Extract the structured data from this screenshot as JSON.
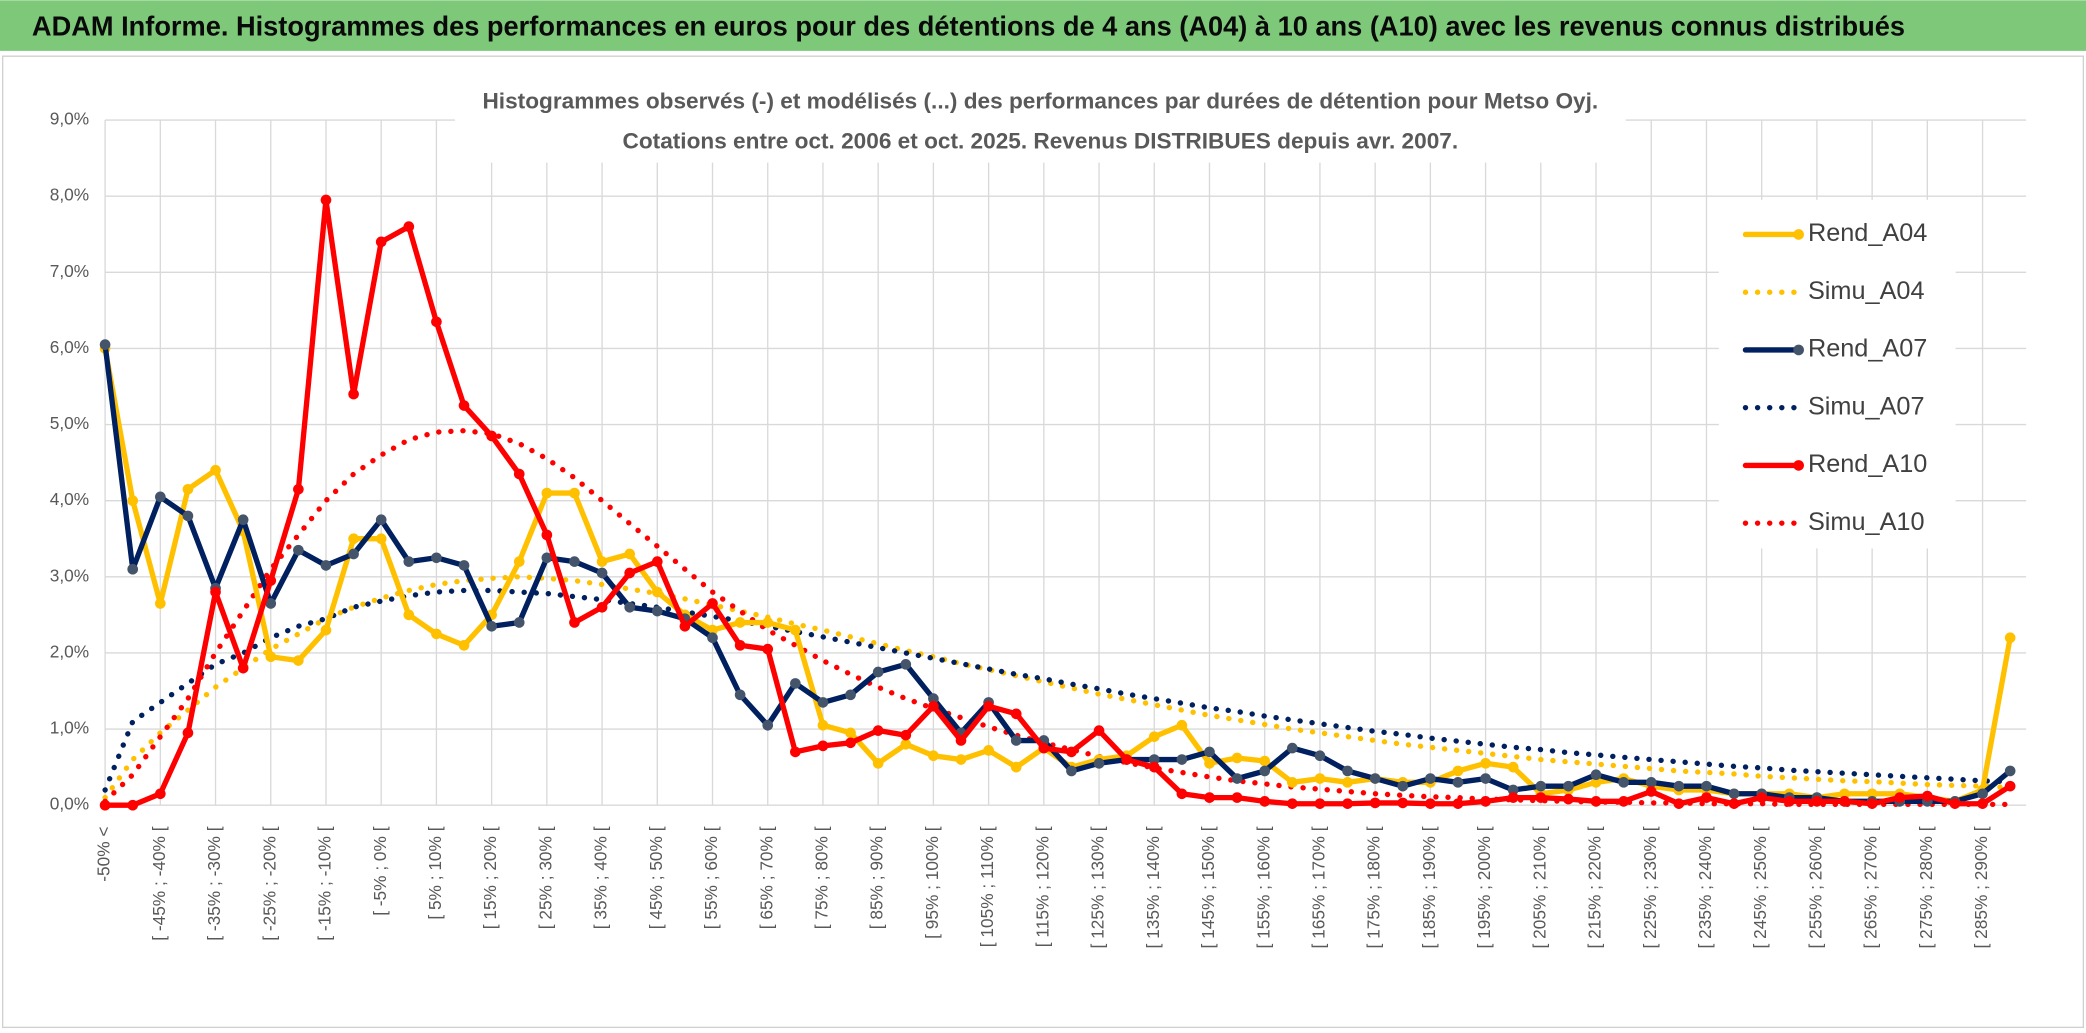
{
  "chart_data": {
    "type": "line",
    "title": "ADAM Informe. Histogrammes des performances en euros pour des détentions de 4 ans (A04) à 10 ans (A10) avec les revenus connus distribués",
    "subtitle": [
      "Histogrammes observés (-) et modélisés (...) des performances par durées de détention pour Metso Oyj.",
      "Cotations entre oct. 2006 et oct. 2025. Revenus DISTRIBUES depuis avr. 2007."
    ],
    "categories": [
      "-50% <",
      null,
      "[ -45% ; -40% [",
      null,
      "[ -35% ; -30% [",
      null,
      "[ -25% ; -20% [",
      null,
      "[ -15% ; -10% [",
      null,
      "[ -5% ; 0% [",
      null,
      "[ 5% ; 10% [",
      null,
      "[ 15% ; 20% [",
      null,
      "[ 25% ; 30% [",
      null,
      "[ 35% ; 40% [",
      null,
      "[ 45% ; 50% [",
      null,
      "[ 55% ; 60% [",
      null,
      "[ 65% ; 70% [",
      null,
      "[ 75% ; 80% [",
      null,
      "[ 85% ; 90% [",
      null,
      "[ 95% ; 100% [",
      null,
      "[ 105% ; 110% [",
      null,
      "[ 115% ; 120% [",
      null,
      "[ 125% ; 130% [",
      null,
      "[ 135% ; 140% [",
      null,
      "[ 145% ; 150% [",
      null,
      "[ 155% ; 160% [",
      null,
      "[ 165% ; 170% [",
      null,
      "[ 175% ; 180% [",
      null,
      "[ 185% ; 190% [",
      null,
      "[ 195% ; 200% [",
      null,
      "[ 205% ; 210% [",
      null,
      "[ 215% ; 220% [",
      null,
      "[ 225% ; 230% [",
      null,
      "[ 235% ; 240% [",
      null,
      "[ 245% ; 250% [",
      null,
      "[ 255% ; 260% [",
      null,
      "[ 265% ; 270% [",
      null,
      "[ 275% ; 280% [",
      null,
      "[ 285% ; 290% [",
      null
    ],
    "ylim": [
      0,
      9
    ],
    "yticks": [
      {
        "value": 0,
        "label": "0,0%"
      },
      {
        "value": 1,
        "label": "1,0%"
      },
      {
        "value": 2,
        "label": "2,0%"
      },
      {
        "value": 3,
        "label": "3,0%"
      },
      {
        "value": 4,
        "label": "4,0%"
      },
      {
        "value": 5,
        "label": "5,0%"
      },
      {
        "value": 6,
        "label": "6,0%"
      },
      {
        "value": 7,
        "label": "7,0%"
      },
      {
        "value": 8,
        "label": "8,0%"
      },
      {
        "value": 9,
        "label": "9,0%"
      }
    ],
    "grid": true,
    "legend": "right",
    "series": [
      {
        "name": "Rend_A04",
        "color": "#FFC000",
        "line_style": "solid",
        "marker_color": "#FFC000",
        "values": [
          6.0,
          4.0,
          2.65,
          4.15,
          4.4,
          3.6,
          1.95,
          1.9,
          2.3,
          3.5,
          3.5,
          2.5,
          2.25,
          2.1,
          2.5,
          3.2,
          4.1,
          4.1,
          3.2,
          3.3,
          2.8,
          2.5,
          2.3,
          2.4,
          2.4,
          2.3,
          1.05,
          0.95,
          0.55,
          0.8,
          0.65,
          0.6,
          0.72,
          0.5,
          0.75,
          0.5,
          0.6,
          0.65,
          0.9,
          1.05,
          0.55,
          0.62,
          0.58,
          0.3,
          0.35,
          0.3,
          0.35,
          0.3,
          0.3,
          0.45,
          0.55,
          0.5,
          0.15,
          0.2,
          0.3,
          0.35,
          0.25,
          0.2,
          0.2,
          0.15,
          0.15,
          0.15,
          0.1,
          0.15,
          0.15,
          0.15,
          0.1,
          0.05,
          0.2,
          2.2
        ]
      },
      {
        "name": "Simu_A04",
        "color": "#FFC000",
        "line_style": "dotted",
        "values": [
          0.1,
          0.6,
          0.95,
          1.25,
          1.55,
          1.8,
          2.05,
          2.25,
          2.45,
          2.6,
          2.72,
          2.82,
          2.9,
          2.95,
          2.98,
          3.0,
          2.98,
          2.95,
          2.9,
          2.84,
          2.78,
          2.71,
          2.63,
          2.55,
          2.47,
          2.38,
          2.3,
          2.21,
          2.12,
          2.03,
          1.95,
          1.86,
          1.78,
          1.7,
          1.62,
          1.54,
          1.46,
          1.39,
          1.32,
          1.25,
          1.18,
          1.12,
          1.06,
          1.0,
          0.95,
          0.9,
          0.85,
          0.8,
          0.76,
          0.72,
          0.68,
          0.64,
          0.6,
          0.57,
          0.54,
          0.51,
          0.48,
          0.45,
          0.43,
          0.41,
          0.38,
          0.36,
          0.34,
          0.32,
          0.31,
          0.29,
          0.27,
          0.26,
          0.25,
          0.23
        ]
      },
      {
        "name": "Rend_A07",
        "color": "#002060",
        "line_style": "solid",
        "marker_color": "#44546A",
        "values": [
          6.05,
          3.1,
          4.05,
          3.8,
          2.85,
          3.75,
          2.65,
          3.35,
          3.15,
          3.3,
          3.75,
          3.2,
          3.25,
          3.15,
          2.35,
          2.4,
          3.25,
          3.2,
          3.05,
          2.6,
          2.55,
          2.45,
          2.2,
          1.45,
          1.05,
          1.6,
          1.35,
          1.45,
          1.75,
          1.85,
          1.4,
          0.95,
          1.35,
          0.85,
          0.85,
          0.45,
          0.55,
          0.6,
          0.6,
          0.6,
          0.7,
          0.35,
          0.45,
          0.75,
          0.65,
          0.45,
          0.35,
          0.25,
          0.35,
          0.3,
          0.35,
          0.2,
          0.25,
          0.25,
          0.4,
          0.3,
          0.3,
          0.25,
          0.25,
          0.15,
          0.15,
          0.1,
          0.1,
          0.05,
          0.05,
          0.05,
          0.05,
          0.05,
          0.15,
          0.45
        ]
      },
      {
        "name": "Simu_A07",
        "color": "#002060",
        "line_style": "dotted",
        "values": [
          0.2,
          1.1,
          1.35,
          1.6,
          1.85,
          2.0,
          2.2,
          2.35,
          2.45,
          2.6,
          2.68,
          2.75,
          2.8,
          2.82,
          2.82,
          2.8,
          2.78,
          2.74,
          2.7,
          2.65,
          2.6,
          2.54,
          2.48,
          2.42,
          2.35,
          2.28,
          2.21,
          2.14,
          2.07,
          2.0,
          1.93,
          1.86,
          1.79,
          1.72,
          1.66,
          1.59,
          1.53,
          1.46,
          1.4,
          1.34,
          1.28,
          1.23,
          1.17,
          1.12,
          1.07,
          1.02,
          0.97,
          0.93,
          0.88,
          0.84,
          0.8,
          0.76,
          0.73,
          0.69,
          0.66,
          0.63,
          0.6,
          0.57,
          0.54,
          0.51,
          0.49,
          0.46,
          0.44,
          0.42,
          0.4,
          0.38,
          0.36,
          0.34,
          0.32,
          0.31
        ]
      },
      {
        "name": "Rend_A10",
        "color": "#FF0000",
        "line_style": "solid",
        "marker_color": "#FF0000",
        "values": [
          0,
          0,
          0.15,
          0.95,
          2.8,
          1.8,
          2.95,
          4.15,
          7.95,
          5.4,
          7.4,
          7.6,
          6.35,
          5.25,
          4.85,
          4.35,
          3.55,
          2.4,
          2.6,
          3.05,
          3.2,
          2.35,
          2.65,
          2.1,
          2.05,
          0.7,
          0.78,
          0.82,
          0.98,
          0.92,
          1.3,
          0.85,
          1.3,
          1.2,
          0.75,
          0.7,
          0.98,
          0.6,
          0.5,
          0.15,
          0.1,
          0.1,
          0.05,
          0.02,
          0.02,
          0.02,
          0.03,
          0.03,
          0.02,
          0.02,
          0.05,
          0.1,
          0.1,
          0.08,
          0.05,
          0.05,
          0.18,
          0.02,
          0.1,
          0.02,
          0.1,
          0.05,
          0.05,
          0.05,
          0.02,
          0.1,
          0.12,
          0.02,
          0.02,
          0.25
        ]
      },
      {
        "name": "Simu_A10",
        "color": "#FF0000",
        "line_style": "dotted",
        "values": [
          0.05,
          0.4,
          0.9,
          1.4,
          2.0,
          2.55,
          3.1,
          3.55,
          4.0,
          4.35,
          4.6,
          4.8,
          4.9,
          4.92,
          4.88,
          4.75,
          4.55,
          4.3,
          4.0,
          3.7,
          3.4,
          3.1,
          2.8,
          2.55,
          2.3,
          2.1,
          1.9,
          1.72,
          1.55,
          1.4,
          1.27,
          1.15,
          1.03,
          0.92,
          0.82,
          0.73,
          0.64,
          0.56,
          0.49,
          0.43,
          0.37,
          0.32,
          0.28,
          0.24,
          0.21,
          0.18,
          0.15,
          0.13,
          0.11,
          0.1,
          0.08,
          0.07,
          0.06,
          0.05,
          0.04,
          0.04,
          0.03,
          0.03,
          0.02,
          0.02,
          0.02,
          0.01,
          0.01,
          0.01,
          0.01,
          0.01,
          0.01,
          0.01,
          0.01,
          0.01
        ]
      }
    ]
  }
}
